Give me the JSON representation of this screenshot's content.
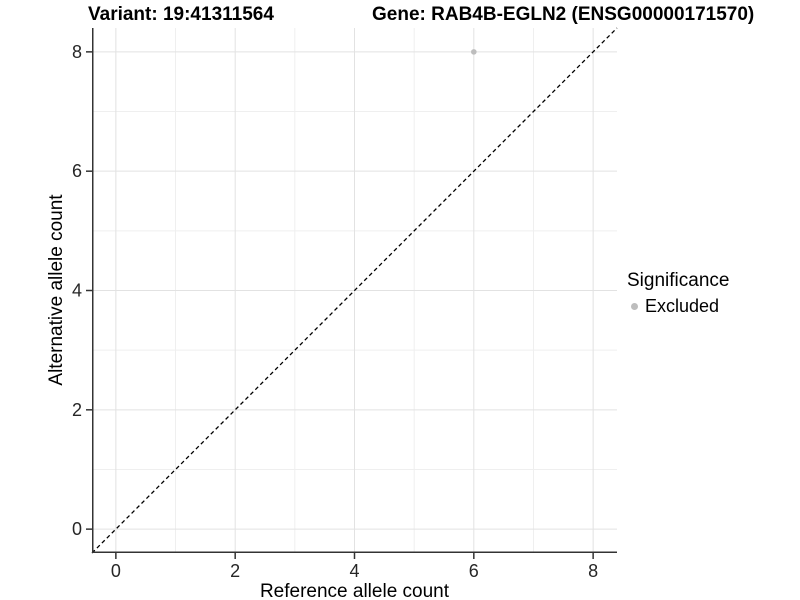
{
  "titles": {
    "variant": "Variant: 19:41311564",
    "gene": "Gene: RAB4B-EGLN2 (ENSG00000171570)"
  },
  "chart_data": {
    "type": "scatter",
    "title_left": "Variant: 19:41311564",
    "title_right": "Gene: RAB4B-EGLN2 (ENSG00000171570)",
    "xlabel": "Reference allele count",
    "ylabel": "Alternative allele count",
    "xlim": [
      -0.4,
      8.4
    ],
    "ylim": [
      -0.4,
      8.4
    ],
    "x_ticks": [
      0,
      2,
      4,
      6,
      8
    ],
    "y_ticks": [
      0,
      2,
      4,
      6,
      8
    ],
    "x_minor": [
      1,
      3,
      5,
      7
    ],
    "y_minor": [
      1,
      3,
      5,
      7
    ],
    "grid": true,
    "points": [
      {
        "x": 6,
        "y": 8,
        "series": "Excluded"
      }
    ],
    "abline": {
      "slope": 1,
      "intercept": 0,
      "style": "dashed",
      "color": "#000000"
    },
    "legend": {
      "title": "Significance",
      "position": "right",
      "entries": [
        {
          "label": "Excluded",
          "color": "#bdbdbd"
        }
      ]
    },
    "colors": {
      "point": "#bdbdbd",
      "grid_major": "#e2e2e2",
      "grid_minor": "#efefef",
      "axis_line": "#333333",
      "tick_text": "#262626"
    }
  }
}
